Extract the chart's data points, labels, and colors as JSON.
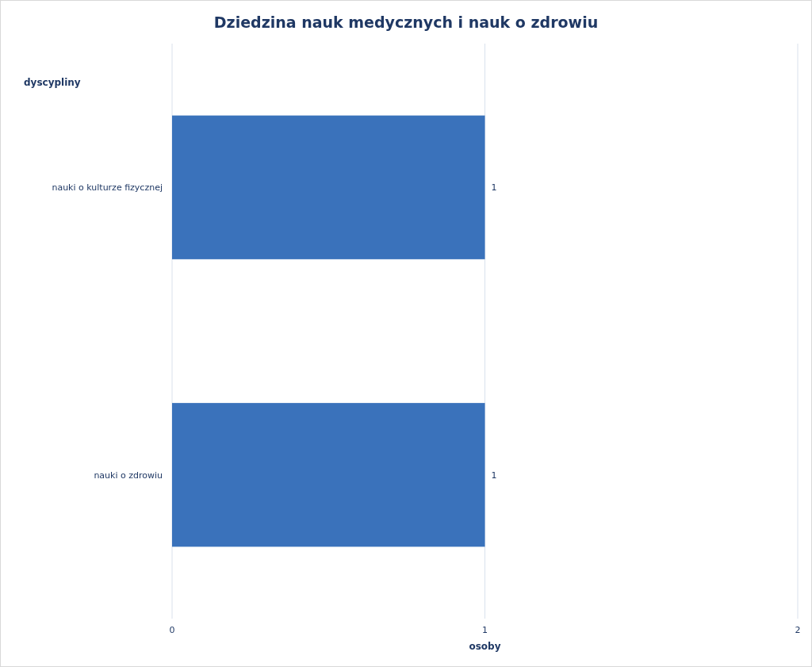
{
  "chart_data": {
    "type": "bar",
    "orientation": "horizontal",
    "title": "Dziedzina nauk medycznych i nauk o zdrowiu",
    "xlabel": "osoby",
    "ylabel": "dyscypliny",
    "categories": [
      "nauki o kulturze fizycznej",
      "nauki o zdrowiu"
    ],
    "values": [
      1,
      1
    ],
    "color": "#3a72bb",
    "xlim": [
      0,
      2
    ],
    "xticks": [
      0,
      1,
      2
    ],
    "grid": "x",
    "data_labels": true
  }
}
